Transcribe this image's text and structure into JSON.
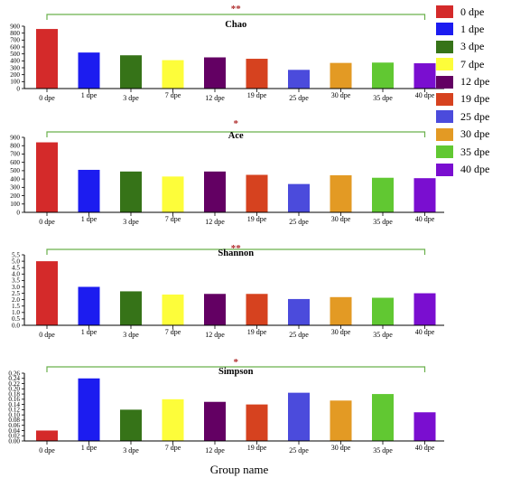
{
  "xlabel": "Group name",
  "legend": {
    "items": [
      {
        "label": "0 dpe",
        "color": "#d42a2a"
      },
      {
        "label": "1 dpe",
        "color": "#1c1cf0"
      },
      {
        "label": "3 dpe",
        "color": "#367318"
      },
      {
        "label": "7 dpe",
        "color": "#fdfd3a"
      },
      {
        "label": "12 dpe",
        "color": "#630063"
      },
      {
        "label": "19 dpe",
        "color": "#d6421f"
      },
      {
        "label": "25 dpe",
        "color": "#4b4bdc"
      },
      {
        "label": "30 dpe",
        "color": "#e39a24"
      },
      {
        "label": "35 dpe",
        "color": "#61c832"
      },
      {
        "label": "40 dpe",
        "color": "#7a0ed0"
      }
    ]
  },
  "chart_data": [
    {
      "type": "bar",
      "title": "Chao",
      "significance": "**",
      "categories": [
        "0 dpe",
        "1 dpe",
        "3 dpe",
        "7 dpe",
        "12 dpe",
        "19 dpe",
        "25 dpe",
        "30 dpe",
        "35 dpe",
        "40 dpe"
      ],
      "values": [
        860,
        520,
        480,
        410,
        450,
        430,
        270,
        370,
        375,
        365
      ],
      "ylim": [
        0,
        900
      ],
      "yticks": [
        "0",
        "100",
        "200",
        "300",
        "400",
        "500",
        "600",
        "700",
        "800",
        "900"
      ]
    },
    {
      "type": "bar",
      "title": "Ace",
      "significance": "*",
      "categories": [
        "0 dpe",
        "1 dpe",
        "3 dpe",
        "7 dpe",
        "12 dpe",
        "19 dpe",
        "25 dpe",
        "30 dpe",
        "35 dpe",
        "40 dpe"
      ],
      "values": [
        840,
        510,
        490,
        430,
        490,
        450,
        340,
        445,
        415,
        410
      ],
      "ylim": [
        0,
        900
      ],
      "yticks": [
        "0",
        "100",
        "200",
        "300",
        "400",
        "500",
        "600",
        "700",
        "800",
        "900"
      ]
    },
    {
      "type": "bar",
      "title": "Shannon",
      "significance": "**",
      "categories": [
        "0 dpe",
        "1 dpe",
        "3 dpe",
        "7 dpe",
        "12 dpe",
        "19 dpe",
        "25 dpe",
        "30 dpe",
        "35 dpe",
        "40 dpe"
      ],
      "values": [
        5.0,
        3.0,
        2.65,
        2.4,
        2.45,
        2.45,
        2.05,
        2.2,
        2.15,
        2.5
      ],
      "ylim": [
        0,
        5.5
      ],
      "yticks": [
        "0.0",
        "0.5",
        "1.0",
        "1.5",
        "2.0",
        "2.5",
        "3.0",
        "3.5",
        "4.0",
        "4.5",
        "5.0",
        "5.5"
      ]
    },
    {
      "type": "bar",
      "title": "Simpson",
      "significance": "*",
      "categories": [
        "0 dpe",
        "1 dpe",
        "3 dpe",
        "7 dpe",
        "12 dpe",
        "19 dpe",
        "25 dpe",
        "30 dpe",
        "35 dpe",
        "40 dpe"
      ],
      "values": [
        0.04,
        0.24,
        0.12,
        0.16,
        0.15,
        0.14,
        0.185,
        0.155,
        0.18,
        0.11
      ],
      "ylim": [
        0,
        0.26
      ],
      "yticks": [
        "0.00",
        "0.02",
        "0.04",
        "0.06",
        "0.08",
        "0.10",
        "0.12",
        "0.14",
        "0.16",
        "0.18",
        "0.20",
        "0.22",
        "0.24",
        "0.26"
      ]
    }
  ]
}
